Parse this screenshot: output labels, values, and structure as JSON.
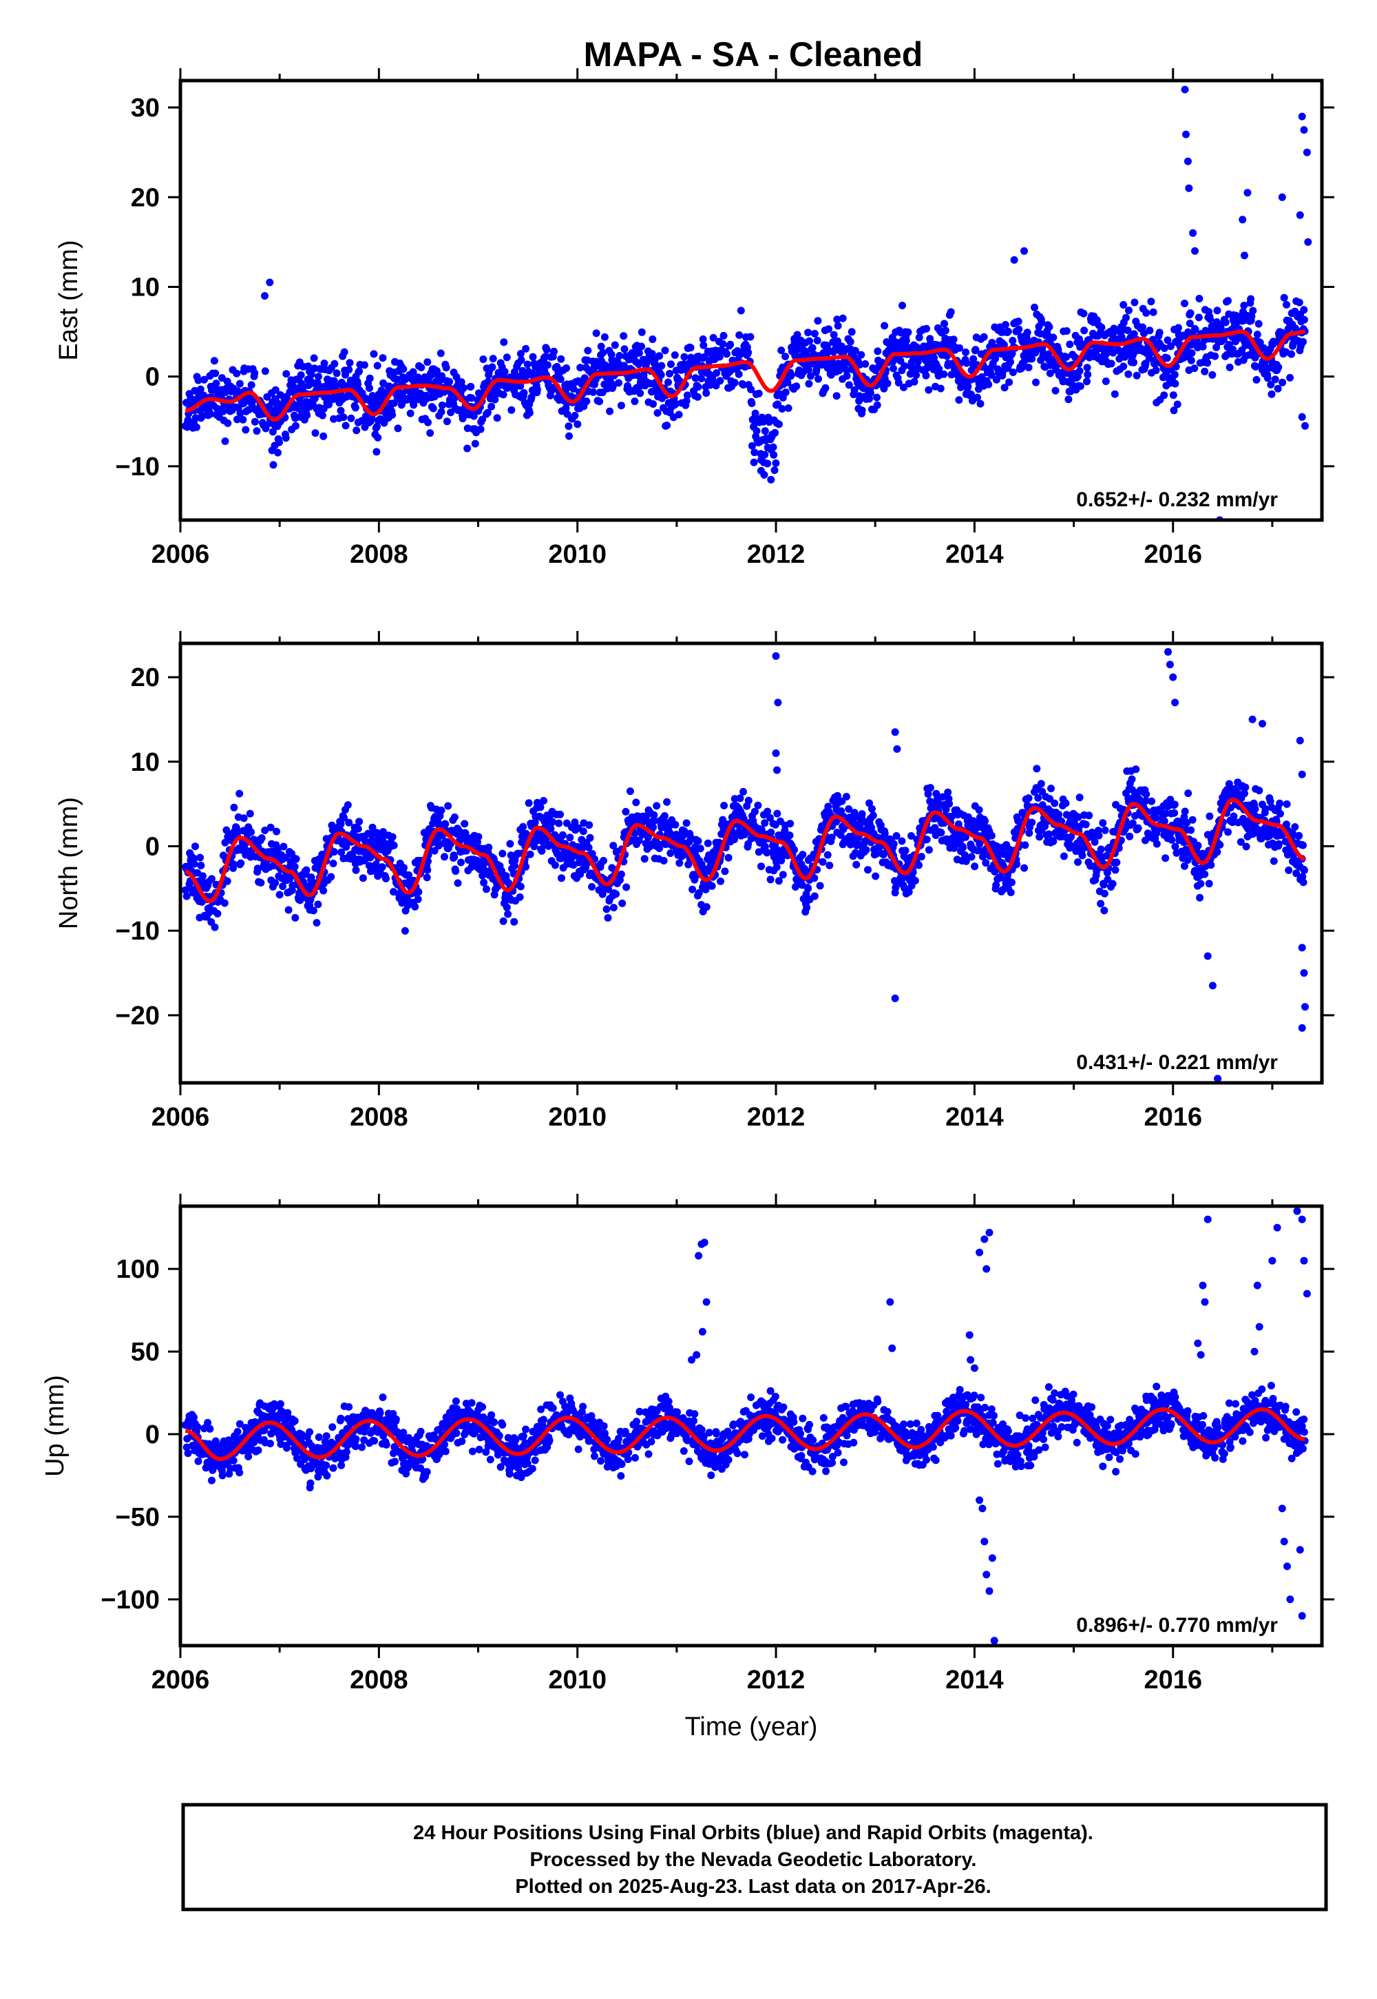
{
  "figure": {
    "title": "MAPA  - SA - Cleaned",
    "footer": {
      "lines": [
        "24 Hour Positions Using Final Orbits (blue) and Rapid Orbits (magenta).",
        "Processed by the Nevada Geodetic Laboratory.",
        "Plotted on 2025-Aug-23. Last data on 2017-Apr-26."
      ]
    }
  },
  "chart_data": [
    {
      "type": "scatter",
      "component": "east",
      "ylabel": "East (mm)",
      "xlabel": "",
      "xlim": [
        2006.0,
        2017.5
      ],
      "ylim": [
        -16,
        33
      ],
      "xticks": [
        2006,
        2008,
        2010,
        2012,
        2014,
        2016
      ],
      "xtick_labels": [
        "2006",
        "2008",
        "2010",
        "2012",
        "2014",
        "2016"
      ],
      "yticks": [
        -10,
        0,
        10,
        20,
        30
      ],
      "ytick_labels": [
        "−10",
        "0",
        "10",
        "20",
        "30"
      ],
      "rate_text": "0.652+/- 0.232 mm/yr",
      "colors": {
        "points": "#0000ff",
        "fit": "#ff0000"
      },
      "fit": {
        "x": [
          2006.05,
          2006.3,
          2006.5,
          2006.7,
          2006.95,
          2007.2,
          2007.45,
          2007.7,
          2007.95,
          2008.2,
          2008.45,
          2008.7,
          2008.95,
          2009.2,
          2009.45,
          2009.7,
          2009.95,
          2010.2,
          2010.45,
          2010.7,
          2010.95,
          2011.2,
          2011.45,
          2011.7,
          2011.95,
          2012.2,
          2012.45,
          2012.7,
          2012.95,
          2013.2,
          2013.45,
          2013.7,
          2013.95,
          2014.2,
          2014.45,
          2014.7,
          2014.95,
          2015.2,
          2015.45,
          2015.7,
          2015.95,
          2016.2,
          2016.45,
          2016.7,
          2016.95,
          2017.2,
          2017.33
        ],
        "y": [
          -3.8,
          -2.5,
          -2.8,
          -1.8,
          -4.8,
          -2.0,
          -1.8,
          -1.5,
          -4.2,
          -1.2,
          -1.0,
          -1.3,
          -3.6,
          -0.4,
          -0.6,
          -0.1,
          -2.8,
          0.3,
          0.4,
          0.8,
          -2.2,
          1.0,
          1.2,
          1.6,
          -1.6,
          1.8,
          2.0,
          2.2,
          -1.0,
          2.5,
          2.6,
          3.0,
          0.0,
          3.0,
          3.2,
          3.6,
          0.8,
          3.8,
          3.6,
          4.2,
          1.2,
          4.4,
          4.6,
          5.0,
          2.0,
          4.8,
          5.0
        ]
      },
      "outliers": [
        [
          2016.12,
          32.0
        ],
        [
          2016.13,
          27.0
        ],
        [
          2016.15,
          24.0
        ],
        [
          2016.16,
          21.0
        ],
        [
          2016.2,
          16.0
        ],
        [
          2016.22,
          14.0
        ],
        [
          2016.7,
          17.5
        ],
        [
          2016.75,
          20.5
        ],
        [
          2016.72,
          13.5
        ],
        [
          2017.1,
          20.0
        ],
        [
          2017.3,
          29.0
        ],
        [
          2017.32,
          27.5
        ],
        [
          2017.35,
          25.0
        ],
        [
          2017.28,
          18.0
        ],
        [
          2017.36,
          15.0
        ],
        [
          2017.3,
          -4.5
        ],
        [
          2017.33,
          -5.5
        ],
        [
          2006.85,
          9.0
        ],
        [
          2006.9,
          10.5
        ],
        [
          2014.4,
          13.0
        ],
        [
          2014.5,
          14.0
        ],
        [
          2016.47,
          -16.0
        ],
        [
          2015.5,
          8.0
        ],
        [
          2011.85,
          -10.5
        ],
        [
          2011.95,
          -11.5
        ]
      ],
      "noise": {
        "scatter": 1.8,
        "seed": 11
      },
      "segments": [
        {
          "x": [
            2011.75,
            2012.0
          ],
          "offset": -6.0
        }
      ]
    },
    {
      "type": "scatter",
      "component": "north",
      "ylabel": "North (mm)",
      "xlabel": "",
      "xlim": [
        2006.0,
        2017.5
      ],
      "ylim": [
        -28,
        24
      ],
      "xticks": [
        2006,
        2008,
        2010,
        2012,
        2014,
        2016
      ],
      "xtick_labels": [
        "2006",
        "2008",
        "2010",
        "2012",
        "2014",
        "2016"
      ],
      "yticks": [
        -20,
        -10,
        0,
        10,
        20
      ],
      "ytick_labels": [
        "−20",
        "−10",
        "0",
        "10",
        "20"
      ],
      "rate_text": "0.431+/- 0.221 mm/yr",
      "colors": {
        "points": "#0000ff",
        "fit": "#ff0000"
      },
      "fit": {
        "x": [
          2006.05,
          2006.3,
          2006.6,
          2006.9,
          2007.1,
          2007.3,
          2007.6,
          2007.85,
          2008.05,
          2008.3,
          2008.6,
          2008.85,
          2009.05,
          2009.3,
          2009.6,
          2009.85,
          2010.05,
          2010.3,
          2010.6,
          2010.85,
          2011.05,
          2011.3,
          2011.6,
          2011.85,
          2012.05,
          2012.3,
          2012.6,
          2012.85,
          2013.05,
          2013.3,
          2013.6,
          2013.85,
          2014.05,
          2014.3,
          2014.6,
          2014.85,
          2015.05,
          2015.3,
          2015.6,
          2015.85,
          2016.05,
          2016.3,
          2016.6,
          2016.85,
          2017.05,
          2017.33
        ],
        "y": [
          -3.0,
          -6.5,
          1.0,
          -1.5,
          -3.0,
          -5.8,
          1.5,
          0.0,
          -1.5,
          -5.5,
          2.0,
          0.0,
          -1.0,
          -5.2,
          2.2,
          0.0,
          -0.8,
          -4.5,
          2.5,
          1.0,
          0.0,
          -4.0,
          3.0,
          1.2,
          0.5,
          -3.8,
          3.5,
          1.5,
          0.5,
          -3.2,
          4.0,
          2.0,
          1.0,
          -3.0,
          4.5,
          2.5,
          1.5,
          -2.5,
          5.0,
          2.5,
          2.0,
          -2.0,
          5.5,
          3.0,
          2.5,
          -1.5
        ]
      },
      "outliers": [
        [
          2012.0,
          22.5
        ],
        [
          2012.02,
          17.0
        ],
        [
          2012.0,
          11.0
        ],
        [
          2012.01,
          9.0
        ],
        [
          2013.2,
          13.5
        ],
        [
          2013.22,
          11.5
        ],
        [
          2013.2,
          -18.0
        ],
        [
          2015.95,
          23.0
        ],
        [
          2015.97,
          21.5
        ],
        [
          2016.0,
          20.0
        ],
        [
          2016.02,
          17.0
        ],
        [
          2016.35,
          -13.0
        ],
        [
          2016.4,
          -16.5
        ],
        [
          2016.45,
          -27.5
        ],
        [
          2016.8,
          15.0
        ],
        [
          2016.9,
          14.5
        ],
        [
          2017.28,
          12.5
        ],
        [
          2017.3,
          8.5
        ],
        [
          2017.3,
          -12.0
        ],
        [
          2017.32,
          -15.0
        ],
        [
          2017.3,
          -21.5
        ],
        [
          2017.33,
          -19.0
        ]
      ],
      "noise": {
        "scatter": 1.7,
        "seed": 23
      },
      "segments": []
    },
    {
      "type": "scatter",
      "component": "up",
      "ylabel": "Up (mm)",
      "xlabel": "Time (year)",
      "xlim": [
        2006.0,
        2017.5
      ],
      "ylim": [
        -128,
        138
      ],
      "xticks": [
        2006,
        2008,
        2010,
        2012,
        2014,
        2016
      ],
      "xtick_labels": [
        "2006",
        "2008",
        "2010",
        "2012",
        "2014",
        "2016"
      ],
      "yticks": [
        -100,
        -50,
        0,
        50,
        100
      ],
      "ytick_labels": [
        "−100",
        "−50",
        "0",
        "50",
        "100"
      ],
      "rate_text": "0.896+/- 0.770 mm/yr",
      "colors": {
        "points": "#0000ff",
        "fit": "#ff0000"
      },
      "fit": {
        "x": [
          2006.05,
          2006.4,
          2006.9,
          2007.4,
          2007.9,
          2008.4,
          2008.9,
          2009.4,
          2009.9,
          2010.4,
          2010.9,
          2011.4,
          2011.9,
          2012.4,
          2012.9,
          2013.4,
          2013.9,
          2014.4,
          2014.9,
          2015.4,
          2015.9,
          2016.4,
          2016.9,
          2017.33
        ],
        "y": [
          2,
          -15,
          7,
          -14,
          8,
          -13,
          9,
          -12,
          10,
          -11,
          10,
          -10,
          11,
          -9,
          12,
          -8,
          14,
          -7,
          13,
          -6,
          15,
          -5,
          15,
          -3
        ]
      },
      "outliers": [
        [
          2011.25,
          115
        ],
        [
          2011.28,
          116
        ],
        [
          2011.22,
          108
        ],
        [
          2011.3,
          80
        ],
        [
          2011.26,
          62
        ],
        [
          2011.2,
          48
        ],
        [
          2011.15,
          45
        ],
        [
          2013.15,
          80
        ],
        [
          2013.17,
          52
        ],
        [
          2013.95,
          60
        ],
        [
          2013.96,
          45
        ],
        [
          2014.0,
          40
        ],
        [
          2014.05,
          110
        ],
        [
          2014.1,
          118
        ],
        [
          2014.15,
          122
        ],
        [
          2014.12,
          100
        ],
        [
          2014.08,
          -45
        ],
        [
          2014.1,
          -65
        ],
        [
          2014.12,
          -85
        ],
        [
          2014.15,
          -95
        ],
        [
          2014.2,
          -125
        ],
        [
          2014.18,
          -75
        ],
        [
          2014.05,
          -40
        ],
        [
          2016.35,
          130
        ],
        [
          2016.3,
          90
        ],
        [
          2016.32,
          80
        ],
        [
          2016.25,
          55
        ],
        [
          2016.28,
          48
        ],
        [
          2016.85,
          90
        ],
        [
          2016.87,
          65
        ],
        [
          2016.82,
          50
        ],
        [
          2017.0,
          105
        ],
        [
          2017.05,
          125
        ],
        [
          2017.1,
          -45
        ],
        [
          2017.12,
          -65
        ],
        [
          2017.15,
          -80
        ],
        [
          2017.18,
          -100
        ],
        [
          2017.25,
          135
        ],
        [
          2017.3,
          130
        ],
        [
          2017.32,
          105
        ],
        [
          2017.35,
          85
        ],
        [
          2017.3,
          -110
        ],
        [
          2017.28,
          -70
        ]
      ],
      "noise": {
        "scatter": 6.5,
        "seed": 37
      },
      "segments": []
    }
  ]
}
